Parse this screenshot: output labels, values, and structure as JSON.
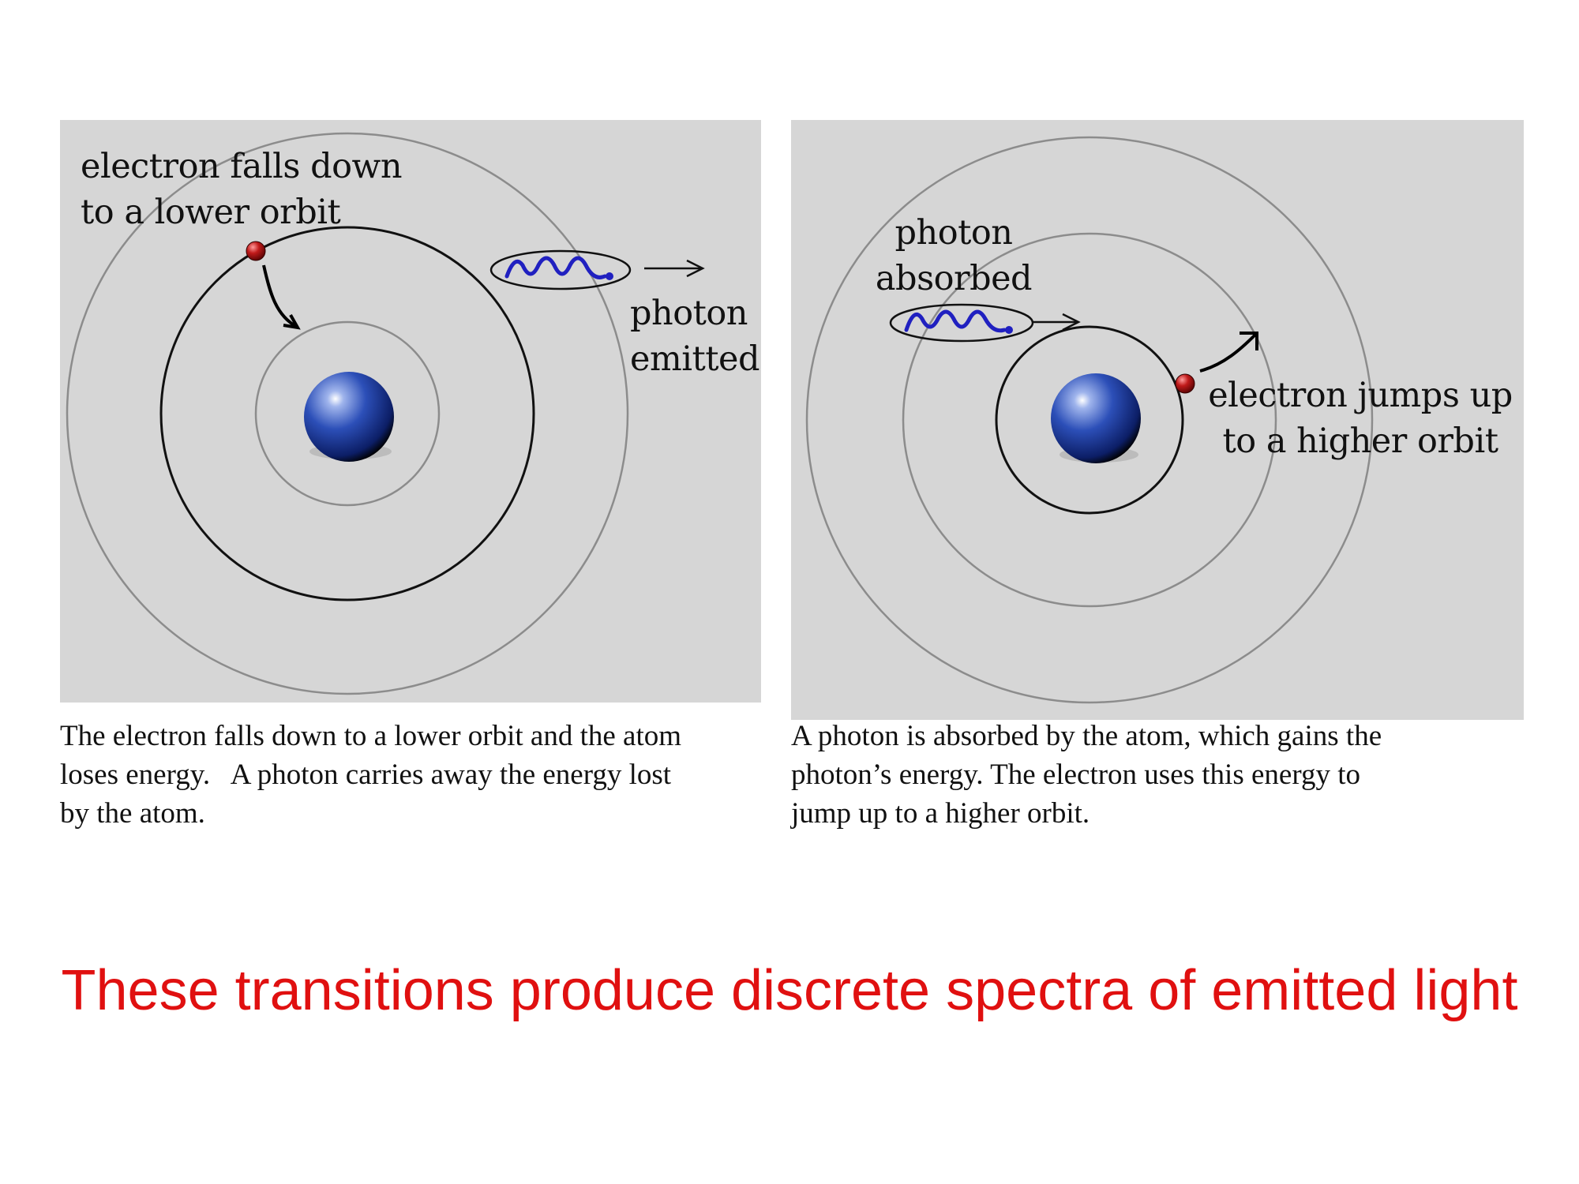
{
  "left_diagram": {
    "label_electron": [
      "electron falls down",
      "to a lower orbit"
    ],
    "label_photon": [
      "photon",
      "emitted"
    ],
    "caption": [
      "The electron falls down to a lower orbit and the atom",
      "loses energy.   A photon carries away the energy lost",
      "by the atom."
    ]
  },
  "right_diagram": {
    "label_photon": [
      "photon",
      "absorbed"
    ],
    "label_electron": [
      "electron jumps up",
      "to a higher orbit"
    ],
    "caption": [
      "A photon is absorbed by the atom, which gains the",
      "photon’s energy. The electron uses this energy to",
      "jump up to a higher orbit."
    ]
  },
  "statement": "These transitions produce discrete spectra of emitted light",
  "colors": {
    "panel_background": "#d6d6d6",
    "nucleus": "#1f3f9a",
    "electron": "#b01818",
    "photon_wave": "#2020c0",
    "statement_text": "#e01010"
  },
  "icons": [
    "nucleus-icon",
    "electron-icon",
    "photon-wave-icon",
    "arrow-icon"
  ]
}
